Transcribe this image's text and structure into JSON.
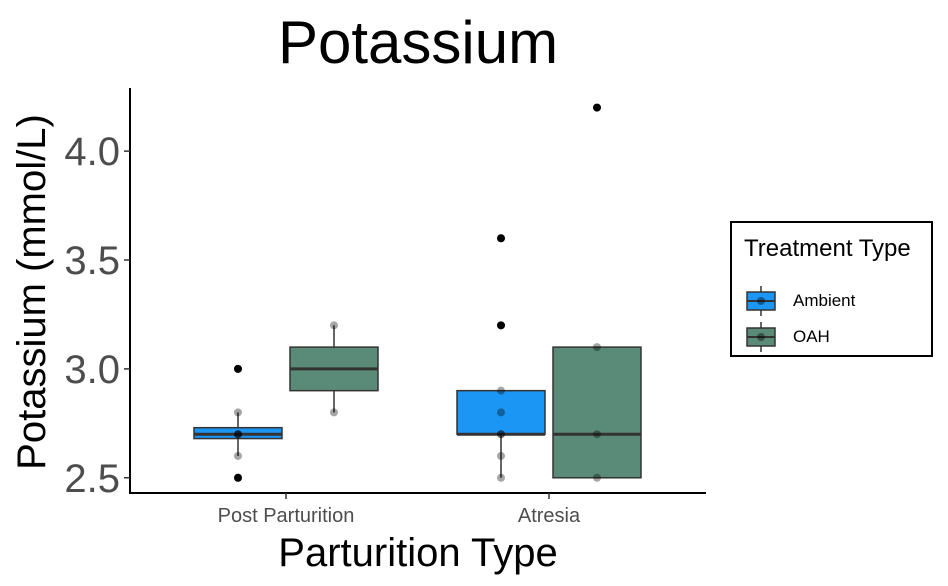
{
  "chart_data": {
    "type": "box",
    "title": "Potassium",
    "xlabel": "Parturition Type",
    "ylabel": "Potassium (mmol/L)",
    "categories": [
      "Post Parturition",
      "Atresia"
    ],
    "ylim": [
      2.43,
      4.29
    ],
    "yticks": [
      2.5,
      3.0,
      3.5,
      4.0
    ],
    "ytick_labels": [
      "2.5",
      "3.0",
      "3.5",
      "4.0"
    ],
    "grid": false,
    "legend_position": "right",
    "legend_title": "Treatment Type",
    "series": [
      {
        "name": "Ambient",
        "color": "#1C96F5",
        "boxes": [
          {
            "category": "Post Parturition",
            "whisker_low": 2.6,
            "q1": 2.68,
            "median": 2.7,
            "q3": 2.73,
            "whisker_high": 2.8,
            "outliers": [
              3.0,
              2.5
            ],
            "points": [
              3.0,
              2.8,
              2.7,
              2.7,
              2.7,
              2.6,
              2.5
            ]
          },
          {
            "category": "Atresia",
            "whisker_low": 2.5,
            "q1": 2.7,
            "median": 2.7,
            "q3": 2.9,
            "whisker_high": 2.9,
            "outliers": [
              3.6,
              3.2
            ],
            "points": [
              3.6,
              3.2,
              2.9,
              2.8,
              2.7,
              2.7,
              2.6,
              2.5
            ]
          }
        ]
      },
      {
        "name": "OAH",
        "color": "#5A8B78",
        "boxes": [
          {
            "category": "Post Parturition",
            "whisker_low": 2.8,
            "q1": 2.9,
            "median": 3.0,
            "q3": 3.1,
            "whisker_high": 3.2,
            "outliers": [],
            "points": [
              3.2,
              2.8
            ]
          },
          {
            "category": "Atresia",
            "whisker_low": 2.5,
            "q1": 2.5,
            "median": 2.7,
            "q3": 3.1,
            "whisker_high": 3.1,
            "outliers": [
              4.2
            ],
            "points": [
              4.2,
              3.1,
              2.7,
              2.5
            ]
          }
        ]
      }
    ]
  }
}
